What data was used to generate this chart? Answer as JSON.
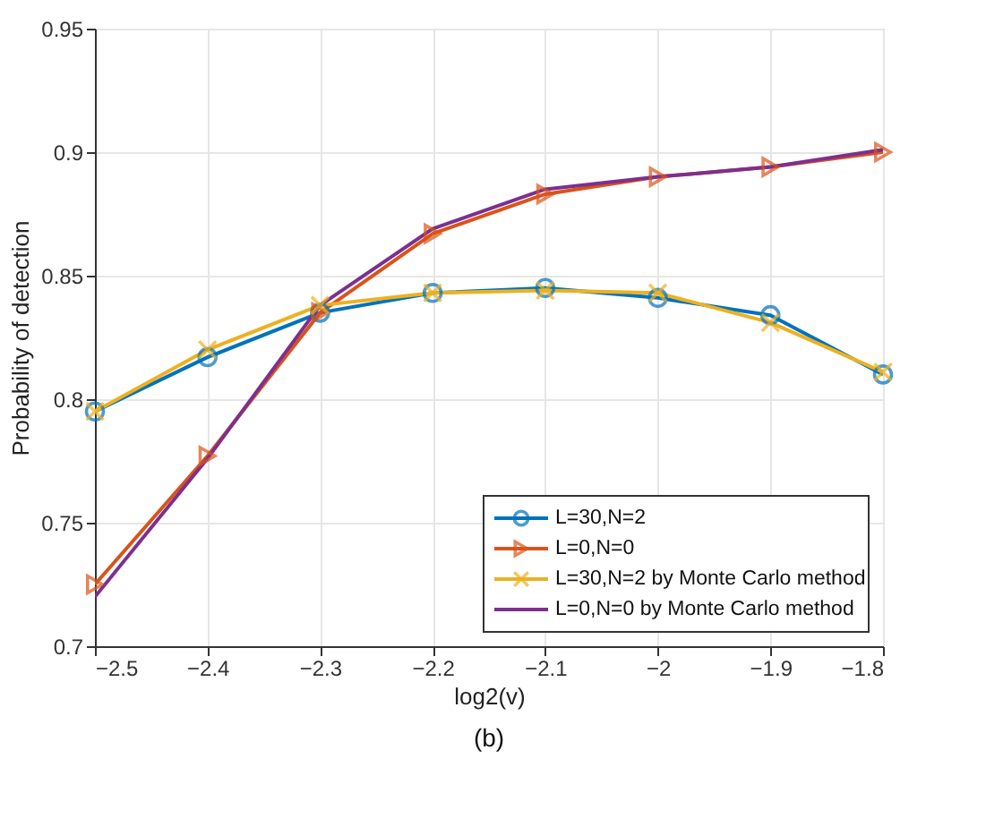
{
  "chart_data": {
    "type": "line",
    "xlabel": "log2(v)",
    "ylabel": "Probability of detection",
    "x": [
      -2.5,
      -2.4,
      -2.3,
      -2.2,
      -2.1,
      -2.0,
      -1.9,
      -1.8
    ],
    "series": [
      {
        "name": "L=30,N=2",
        "color": "#0072bd",
        "marker": "circle",
        "values": [
          0.795,
          0.817,
          0.835,
          0.843,
          0.845,
          0.841,
          0.834,
          0.81
        ]
      },
      {
        "name": "L=0,N=0",
        "color": "#d95319",
        "marker": "triangle",
        "values": [
          0.725,
          0.777,
          0.835,
          0.867,
          0.883,
          0.89,
          0.894,
          0.9
        ]
      },
      {
        "name": "L=30,N=2 by Monte Carlo method",
        "color": "#edb120",
        "marker": "cross",
        "values": [
          0.795,
          0.82,
          0.838,
          0.843,
          0.844,
          0.843,
          0.831,
          0.811
        ]
      },
      {
        "name": "L=0,N=0 by Monte Carlo method",
        "color": "#7e2f8e",
        "marker": "none",
        "values": [
          0.72,
          0.776,
          0.838,
          0.869,
          0.885,
          0.89,
          0.894,
          0.901
        ]
      }
    ],
    "xlim": [
      -2.5,
      -1.8
    ],
    "xticks": [
      -2.5,
      -2.4,
      -2.3,
      -2.2,
      -2.1,
      -2,
      -1.9,
      -1.8
    ],
    "ylim": [
      0.7,
      0.95
    ],
    "yticks": [
      0.7,
      0.75,
      0.8,
      0.85,
      0.9,
      0.95
    ],
    "grid": true,
    "legend": "bottom right",
    "line_style": "solid",
    "annotations": [
      "(b)"
    ]
  }
}
